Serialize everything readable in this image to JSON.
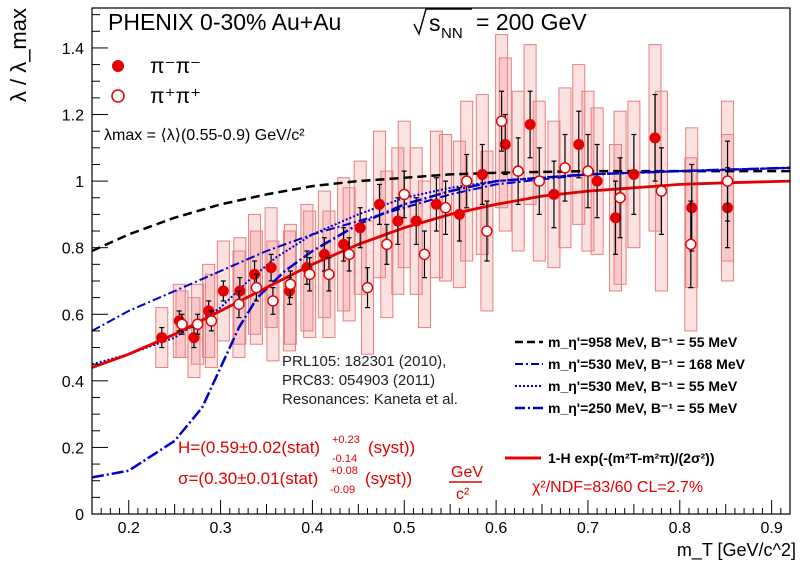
{
  "chart_data": {
    "type": "scatter",
    "title_html": "PHENIX 0-30%  Au+Au",
    "title_energy": "√s_NN = 200 GeV",
    "xlabel": "m_T [GeV/c^2]",
    "ylabel": "λ / λ_max",
    "xlim": [
      0.16,
      0.92
    ],
    "ylim": [
      0,
      1.52
    ],
    "xticks": [
      0.2,
      0.3,
      0.4,
      0.5,
      0.6,
      0.7,
      0.8,
      0.9
    ],
    "yticks": [
      0,
      0.2,
      0.4,
      0.6,
      0.8,
      1.0,
      1.2,
      1.4
    ],
    "ytick_labels": [
      "0",
      "0.2",
      "0.4",
      "0.6",
      "0.8",
      "1",
      "1.2",
      "1.4"
    ],
    "grid": false,
    "legend_markers": [
      {
        "label": "π⁻π⁻",
        "style": "filled",
        "color": "#e30000"
      },
      {
        "label": "π⁺π⁺",
        "style": "open",
        "color": "#e30000"
      }
    ],
    "lambda_max_note": "λmax = ⟨λ⟩(0.55-0.9) GeV/c²",
    "series": [
      {
        "name": "π⁻π⁻",
        "style": "filled",
        "x": [
          0.236,
          0.255,
          0.271,
          0.287,
          0.303,
          0.321,
          0.337,
          0.355,
          0.375,
          0.394,
          0.413,
          0.434,
          0.452,
          0.473,
          0.493,
          0.513,
          0.535,
          0.56,
          0.585,
          0.61,
          0.637,
          0.663,
          0.69,
          0.71,
          0.73,
          0.75,
          0.773,
          0.813,
          0.852
        ],
        "y": [
          0.53,
          0.58,
          0.53,
          0.61,
          0.67,
          0.67,
          0.72,
          0.74,
          0.67,
          0.74,
          0.78,
          0.81,
          0.86,
          0.93,
          0.88,
          0.88,
          0.93,
          0.9,
          1.02,
          1.11,
          1.17,
          0.96,
          1.11,
          1.0,
          0.89,
          1.02,
          1.13,
          0.92,
          0.92
        ],
        "err": [
          0.03,
          0.03,
          0.03,
          0.03,
          0.03,
          0.04,
          0.04,
          0.04,
          0.04,
          0.05,
          0.05,
          0.05,
          0.06,
          0.06,
          0.07,
          0.07,
          0.08,
          0.08,
          0.09,
          0.09,
          0.1,
          0.1,
          0.1,
          0.11,
          0.11,
          0.12,
          0.13,
          0.13,
          0.12
        ],
        "syst": [
          0.09,
          0.11,
          0.12,
          0.14,
          0.15,
          0.16,
          0.18,
          0.18,
          0.18,
          0.19,
          0.19,
          0.2,
          0.2,
          0.22,
          0.22,
          0.22,
          0.22,
          0.22,
          0.24,
          0.26,
          0.24,
          0.22,
          0.24,
          0.22,
          0.22,
          0.22,
          0.28,
          0.24,
          0.22
        ]
      },
      {
        "name": "π⁺π⁺",
        "style": "open",
        "x": [
          0.258,
          0.275,
          0.29,
          0.32,
          0.339,
          0.357,
          0.376,
          0.397,
          0.418,
          0.44,
          0.46,
          0.481,
          0.5,
          0.522,
          0.545,
          0.568,
          0.59,
          0.606,
          0.624,
          0.647,
          0.675,
          0.7,
          0.735,
          0.78,
          0.812,
          0.852
        ],
        "y": [
          0.57,
          0.57,
          0.58,
          0.63,
          0.68,
          0.64,
          0.69,
          0.72,
          0.72,
          0.78,
          0.68,
          0.81,
          0.96,
          0.78,
          0.92,
          1.0,
          0.85,
          1.18,
          1.03,
          1.0,
          1.04,
          1.03,
          0.95,
          0.97,
          0.81,
          1.0
        ],
        "err": [
          0.03,
          0.03,
          0.03,
          0.04,
          0.04,
          0.04,
          0.04,
          0.05,
          0.05,
          0.05,
          0.06,
          0.06,
          0.07,
          0.07,
          0.08,
          0.08,
          0.09,
          0.09,
          0.1,
          0.1,
          0.1,
          0.11,
          0.12,
          0.13,
          0.13,
          0.12
        ],
        "syst": [
          0.1,
          0.12,
          0.14,
          0.16,
          0.17,
          0.18,
          0.18,
          0.19,
          0.19,
          0.2,
          0.2,
          0.22,
          0.22,
          0.22,
          0.22,
          0.24,
          0.24,
          0.26,
          0.24,
          0.24,
          0.24,
          0.24,
          0.26,
          0.3,
          0.26,
          0.24
        ]
      }
    ],
    "model_curves": [
      {
        "label": "m_η'=958 MeV, B⁻¹ = 55 MeV",
        "style": "dashed",
        "color": "#000000",
        "x": [
          0.16,
          0.2,
          0.25,
          0.3,
          0.35,
          0.4,
          0.45,
          0.5,
          0.55,
          0.6,
          0.7,
          0.8,
          0.92
        ],
        "y": [
          0.79,
          0.84,
          0.89,
          0.93,
          0.96,
          0.985,
          1.0,
          1.01,
          1.02,
          1.025,
          1.03,
          1.03,
          1.03
        ]
      },
      {
        "label": "m_η'=530 MeV, B⁻¹ = 168 MeV",
        "style": "dashdot",
        "color": "#0000cc",
        "x": [
          0.16,
          0.2,
          0.25,
          0.3,
          0.35,
          0.4,
          0.45,
          0.5,
          0.55,
          0.6,
          0.7,
          0.8,
          0.92
        ],
        "y": [
          0.55,
          0.61,
          0.67,
          0.73,
          0.79,
          0.84,
          0.88,
          0.92,
          0.96,
          0.99,
          1.02,
          1.03,
          1.04
        ]
      },
      {
        "label": "m_η'=530 MeV, B⁻¹ = 55 MeV",
        "style": "dotted",
        "color": "#0000cc",
        "x": [
          0.16,
          0.2,
          0.25,
          0.3,
          0.33,
          0.36,
          0.4,
          0.45,
          0.5,
          0.55,
          0.6,
          0.7,
          0.8,
          0.92
        ],
        "y": [
          0.45,
          0.48,
          0.53,
          0.62,
          0.7,
          0.77,
          0.84,
          0.9,
          0.95,
          0.98,
          1.0,
          1.02,
          1.03,
          1.04
        ]
      },
      {
        "label": "m_η'=250 MeV, B⁻¹ = 55 MeV",
        "style": "dashdot2",
        "color": "#0000cc",
        "x": [
          0.16,
          0.2,
          0.25,
          0.28,
          0.3,
          0.32,
          0.34,
          0.37,
          0.4,
          0.45,
          0.5,
          0.55,
          0.6,
          0.7,
          0.8,
          0.92
        ],
        "y": [
          0.11,
          0.13,
          0.22,
          0.32,
          0.44,
          0.56,
          0.65,
          0.73,
          0.79,
          0.87,
          0.93,
          0.97,
          1.0,
          1.02,
          1.03,
          1.04
        ]
      },
      {
        "label": "1-H exp(-(m²T-m²π)/(2σ²))",
        "style": "solid",
        "color": "#e30000",
        "x": [
          0.16,
          0.2,
          0.25,
          0.3,
          0.35,
          0.4,
          0.45,
          0.5,
          0.55,
          0.6,
          0.65,
          0.7,
          0.75,
          0.8,
          0.85,
          0.92
        ],
        "y": [
          0.44,
          0.48,
          0.54,
          0.61,
          0.68,
          0.75,
          0.81,
          0.86,
          0.9,
          0.93,
          0.955,
          0.97,
          0.98,
          0.99,
          0.995,
          1.0
        ]
      }
    ],
    "references": [
      "PRL105: 182301 (2010),",
      "PRC83: 054903 (2011)",
      "Resonances: Kaneta et al."
    ],
    "fit_results": {
      "H": "H=(0.59±0.02(stat)",
      "H_up": "+0.23",
      "H_down": "-0.14",
      "H_tail": "(syst))",
      "sigma": "σ=(0.30±0.01(stat)",
      "sigma_up": "+0.08",
      "sigma_down": "-0.09",
      "sigma_tail": "(syst))",
      "unit_num": "GeV",
      "unit_den": "c²",
      "chi2": "χ²/NDF=83/60 CL=2.7%"
    }
  }
}
